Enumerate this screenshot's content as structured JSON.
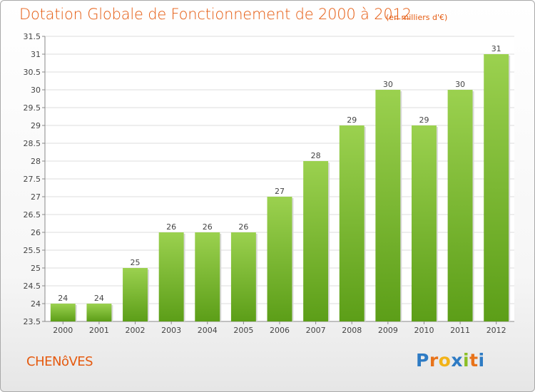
{
  "header": {
    "title": "Dotation Globale de Fonctionnement de 2000 à 2012",
    "subtitle": "(en milliers d'€)"
  },
  "footer": {
    "commune": "CHENôVES",
    "logo_letters": [
      "P",
      "r",
      "o",
      "x",
      "i",
      "t",
      "i"
    ],
    "logo_colors": [
      "#2e7bc4",
      "#e8731a",
      "#f2b318",
      "#2e7bc4",
      "#8cbf26",
      "#e8731a",
      "#2e7bc4"
    ]
  },
  "chart_data": {
    "type": "bar",
    "categories": [
      "2000",
      "2001",
      "2002",
      "2003",
      "2004",
      "2005",
      "2006",
      "2007",
      "2008",
      "2009",
      "2010",
      "2011",
      "2012"
    ],
    "values": [
      24,
      24,
      25,
      26,
      26,
      26,
      27,
      28,
      29,
      30,
      29,
      30,
      31
    ],
    "data_labels": [
      "24",
      "24",
      "25",
      "26",
      "26",
      "26",
      "27",
      "28",
      "29",
      "30",
      "29",
      "30",
      "31"
    ],
    "yticks": [
      "23.5",
      "24",
      "24.5",
      "25",
      "25.5",
      "26",
      "26.5",
      "27",
      "27.5",
      "28",
      "28.5",
      "29",
      "29.5",
      "30",
      "30.5",
      "31",
      "31.5"
    ],
    "ylim": [
      23.5,
      31.5
    ],
    "grid": true,
    "bar_color_top": "#9bd14f",
    "bar_color_bottom": "#5c9e18"
  }
}
